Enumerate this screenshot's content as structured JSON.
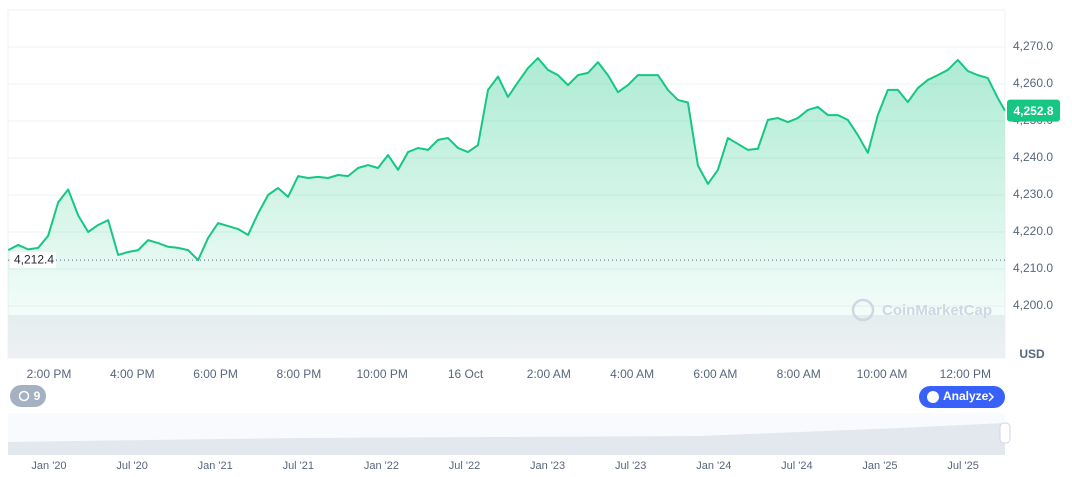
{
  "chart_data": {
    "type": "line",
    "x": [
      13.02,
      13.26,
      13.5,
      13.74,
      13.98,
      14.22,
      14.46,
      14.7,
      14.94,
      15.18,
      15.42,
      15.66,
      15.9,
      16.14,
      16.38,
      16.62,
      16.86,
      17.1,
      17.34,
      17.58,
      17.82,
      18.06,
      18.3,
      18.54,
      18.78,
      19.02,
      19.26,
      19.5,
      19.74,
      19.98,
      20.22,
      20.46,
      20.7,
      20.94,
      21.18,
      21.42,
      21.66,
      21.9,
      22.14,
      22.38,
      22.62,
      22.86,
      23.1,
      23.34,
      23.58,
      23.82,
      24.06,
      24.3,
      24.54,
      24.78,
      25.02,
      25.26,
      25.5,
      25.74,
      25.98,
      26.22,
      26.46,
      26.7,
      26.94,
      27.18,
      27.42,
      27.66,
      27.9,
      28.14,
      28.38,
      28.62,
      28.86,
      29.1,
      29.34,
      29.58,
      29.82,
      30.06,
      30.3,
      30.54,
      30.78,
      31.02,
      31.26,
      31.5,
      31.74,
      31.98,
      32.22,
      32.46,
      32.7,
      32.94,
      33.18,
      33.42,
      33.66,
      33.9,
      34.14,
      34.38,
      34.62,
      34.86,
      35.1,
      35.34,
      35.58,
      35.82,
      36.06,
      36.3,
      36.54,
      36.78,
      36.95
    ],
    "series": [
      {
        "name": "Price",
        "color": "#16c784",
        "values": [
          4215.1,
          4216.5,
          4215.3,
          4215.7,
          4219.0,
          4228.0,
          4231.5,
          4224.5,
          4220.0,
          4221.9,
          4223.2,
          4213.8,
          4214.6,
          4215.1,
          4217.8,
          4217.0,
          4216.0,
          4215.7,
          4215.1,
          4212.4,
          4218.4,
          4222.4,
          4221.6,
          4220.8,
          4219.2,
          4225.0,
          4230.0,
          4231.9,
          4229.5,
          4235.1,
          4234.6,
          4234.9,
          4234.6,
          4235.4,
          4235.1,
          4237.3,
          4238.1,
          4237.3,
          4240.8,
          4236.8,
          4241.6,
          4242.7,
          4242.2,
          4244.9,
          4245.4,
          4242.7,
          4241.6,
          4243.5,
          4258.4,
          4262.0,
          4256.5,
          4260.5,
          4264.3,
          4267.0,
          4263.8,
          4262.4,
          4259.7,
          4262.4,
          4263.0,
          4265.9,
          4262.4,
          4257.8,
          4259.7,
          4262.4,
          4262.4,
          4262.4,
          4258.4,
          4255.7,
          4255.0,
          4238.0,
          4233.0,
          4236.8,
          4245.4,
          4243.8,
          4242.2,
          4242.5,
          4250.3,
          4250.8,
          4249.7,
          4250.8,
          4253.0,
          4253.8,
          4251.6,
          4251.6,
          4250.3,
          4246.2,
          4241.4,
          4251.6,
          4258.4,
          4258.4,
          4255.1,
          4258.9,
          4261.1,
          4262.4,
          4263.8,
          4266.5,
          4263.5,
          4262.4,
          4261.6,
          4256.2,
          4252.8
        ]
      }
    ],
    "xlim": [
      13,
      37
    ],
    "xticks": [
      {
        "value": 14,
        "label": "2:00 PM"
      },
      {
        "value": 16,
        "label": "4:00 PM"
      },
      {
        "value": 18,
        "label": "6:00 PM"
      },
      {
        "value": 20,
        "label": "8:00 PM"
      },
      {
        "value": 22,
        "label": "10:00 PM"
      },
      {
        "value": 24,
        "label": "16 Oct"
      },
      {
        "value": 26,
        "label": "2:00 AM"
      },
      {
        "value": 28,
        "label": "4:00 AM"
      },
      {
        "value": 30,
        "label": "6:00 AM"
      },
      {
        "value": 32,
        "label": "8:00 AM"
      },
      {
        "value": 34,
        "label": "10:00 AM"
      },
      {
        "value": 36,
        "label": "12:00 PM"
      }
    ],
    "ylim": [
      4200,
      4280
    ],
    "yticks": [
      {
        "value": 4200,
        "label": "4,200.0"
      },
      {
        "value": 4210,
        "label": "4,210.0"
      },
      {
        "value": 4220,
        "label": "4,220.0"
      },
      {
        "value": 4230,
        "label": "4,230.0"
      },
      {
        "value": 4240,
        "label": "4,240.0"
      },
      {
        "value": 4250,
        "label": "4,250.0"
      },
      {
        "value": 4260,
        "label": "4,260.0"
      },
      {
        "value": 4270,
        "label": "4,270.0"
      }
    ],
    "y_label": "USD",
    "grid": true,
    "reference_line": {
      "value": 4212.4,
      "label": "4,212.4"
    },
    "current_price": {
      "value": 4252.8,
      "label": "4,252.8"
    }
  },
  "ui": {
    "watermark": "CoinMarketCap",
    "badge": 9,
    "analyze_button": "Analyze",
    "navigator_labels": [
      "Jan '20",
      "Jul '20",
      "Jan '21",
      "Jul '21",
      "Jan '22",
      "Jul '22",
      "Jan '23",
      "Jul '23",
      "Jan '24",
      "Jul '24",
      "Jan '25",
      "Jul '25"
    ]
  }
}
